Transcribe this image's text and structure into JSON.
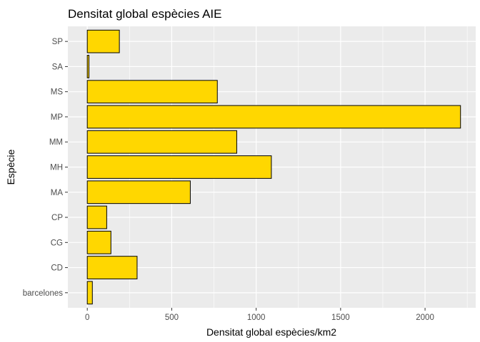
{
  "chart_data": {
    "type": "bar",
    "orientation": "horizontal",
    "title": "Densitat global espècies AIE",
    "xlabel": "Densitat global espècies/km2",
    "ylabel": "Espècie",
    "categories": [
      "barcelones",
      "CD",
      "CG",
      "CP",
      "MA",
      "MH",
      "MM",
      "MP",
      "MS",
      "SA",
      "SP"
    ],
    "values": [
      30,
      295,
      140,
      115,
      610,
      1090,
      885,
      2210,
      770,
      10,
      190
    ],
    "xlim": [
      -115,
      2300
    ],
    "xticks": [
      0,
      500,
      1000,
      1500,
      2000
    ],
    "grid": true,
    "legend": "none",
    "colors": {
      "bar_fill": "#FFD700",
      "bar_stroke": "#000000",
      "panel_background": "#EBEBEB",
      "grid": "#FFFFFF"
    }
  }
}
